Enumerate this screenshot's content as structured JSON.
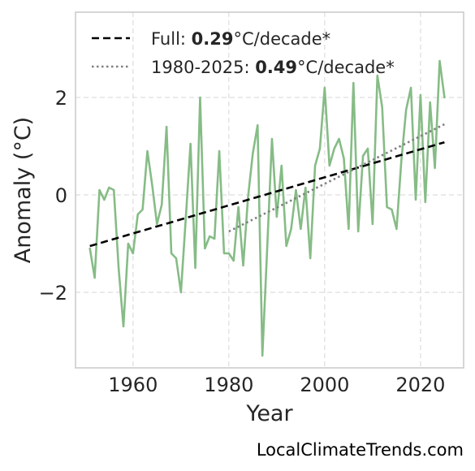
{
  "chart_data": {
    "type": "line",
    "xlabel": "Year",
    "ylabel": "Anomaly (°C)",
    "xlim": [
      1948,
      2029
    ],
    "ylim": [
      -3.55,
      3.75
    ],
    "x_ticks": [
      1960,
      1980,
      2000,
      2020
    ],
    "x_tick_labels": [
      "1960",
      "1980",
      "2000",
      "2020"
    ],
    "y_ticks": [
      -2,
      0,
      2
    ],
    "y_tick_labels": [
      "−2",
      "0",
      "2"
    ],
    "grid": true,
    "legend_position": "top-left",
    "legend": [
      {
        "prefix": "Full: ",
        "value": "0.29",
        "suffix": "°C/decade*",
        "style": "dashed",
        "color": "#000000"
      },
      {
        "prefix": "1980-2025: ",
        "value": "0.49",
        "suffix": "°C/decade*",
        "style": "dotted",
        "color": "#808080"
      }
    ],
    "series": [
      {
        "style": "solid",
        "color": "#86bc86",
        "x": [
          1951,
          1952,
          1953,
          1954,
          1955,
          1956,
          1957,
          1958,
          1959,
          1960,
          1961,
          1962,
          1963,
          1964,
          1965,
          1966,
          1967,
          1968,
          1969,
          1970,
          1971,
          1972,
          1973,
          1974,
          1975,
          1976,
          1977,
          1978,
          1979,
          1980,
          1981,
          1982,
          1983,
          1984,
          1985,
          1986,
          1987,
          1988,
          1989,
          1990,
          1991,
          1992,
          1993,
          1994,
          1995,
          1996,
          1997,
          1998,
          1999,
          2000,
          2001,
          2002,
          2003,
          2004,
          2005,
          2006,
          2007,
          2008,
          2009,
          2010,
          2011,
          2012,
          2013,
          2014,
          2015,
          2016,
          2017,
          2018,
          2019,
          2020,
          2021,
          2022,
          2023,
          2024,
          2025
        ],
        "y": [
          -1.1,
          -1.7,
          0.1,
          -0.1,
          0.15,
          0.1,
          -1.5,
          -2.7,
          -1.0,
          -1.2,
          -0.4,
          -0.3,
          0.9,
          0.2,
          -0.6,
          -0.2,
          1.4,
          -1.2,
          -1.3,
          -2.0,
          -0.5,
          1.05,
          -1.5,
          2.0,
          -1.1,
          -0.85,
          -0.9,
          0.9,
          -1.2,
          -1.2,
          -1.35,
          -0.25,
          -1.45,
          -0.05,
          0.85,
          1.43,
          -3.3,
          -1.1,
          1.15,
          -0.45,
          0.6,
          -1.05,
          -0.7,
          0.1,
          -0.7,
          0.15,
          -1.3,
          0.6,
          0.95,
          2.2,
          0.6,
          0.95,
          1.15,
          0.75,
          -0.7,
          2.3,
          -0.75,
          0.8,
          0.95,
          -0.6,
          2.45,
          1.8,
          -0.25,
          -0.3,
          -0.7,
          0.7,
          1.75,
          2.2,
          -0.1,
          2.05,
          -0.15,
          1.9,
          0.55,
          2.75,
          2.0
        ]
      },
      {
        "style": "dashed",
        "color": "#000000",
        "x": [
          1951,
          2025
        ],
        "y": [
          -1.05,
          1.08
        ]
      },
      {
        "style": "dotted",
        "color": "#808080",
        "x": [
          1980,
          2025
        ],
        "y": [
          -0.75,
          1.45
        ]
      }
    ]
  },
  "credit": "LocalClimateTrends.com"
}
